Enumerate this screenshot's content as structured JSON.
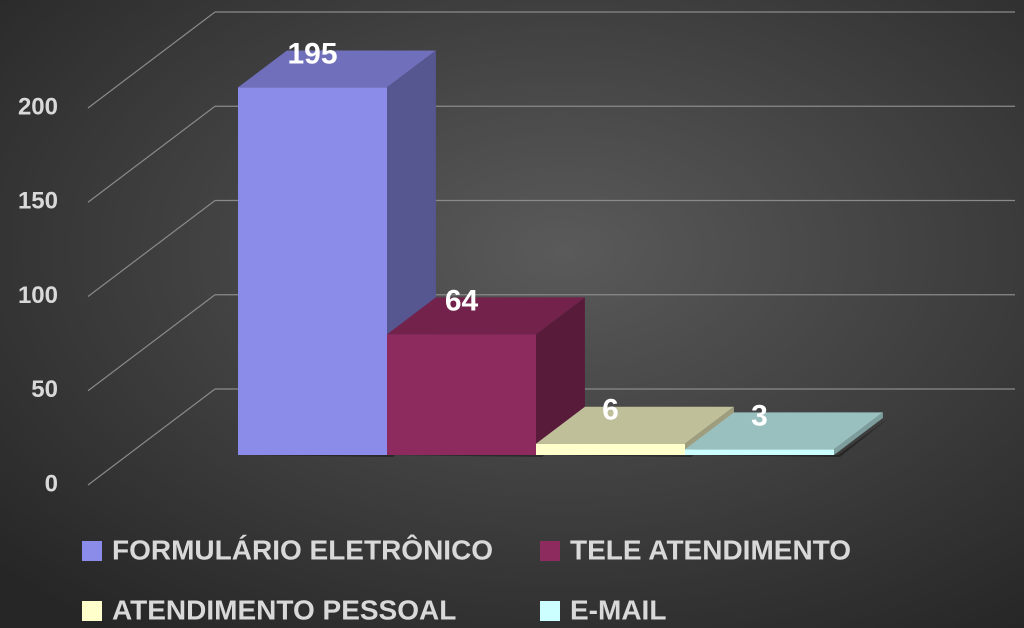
{
  "chart_data": {
    "type": "bar3d",
    "categories": [
      null
    ],
    "series": [
      {
        "name": "FORMULÁRIO ELETRÔNICO",
        "color": "#8b8bea",
        "values": [
          195
        ]
      },
      {
        "name": "TELE ATENDIMENTO",
        "color": "#8e2b5e",
        "values": [
          64
        ]
      },
      {
        "name": "ATENDIMENTO PESSOAL",
        "color": "#ffffcc",
        "values": [
          6
        ]
      },
      {
        "name": "E-MAIL",
        "color": "#ccffff",
        "values": [
          3
        ]
      }
    ],
    "ylim": [
      0,
      200
    ],
    "yticks": [
      0,
      50,
      100,
      150,
      200
    ],
    "grid": true,
    "legend": "bottom"
  }
}
